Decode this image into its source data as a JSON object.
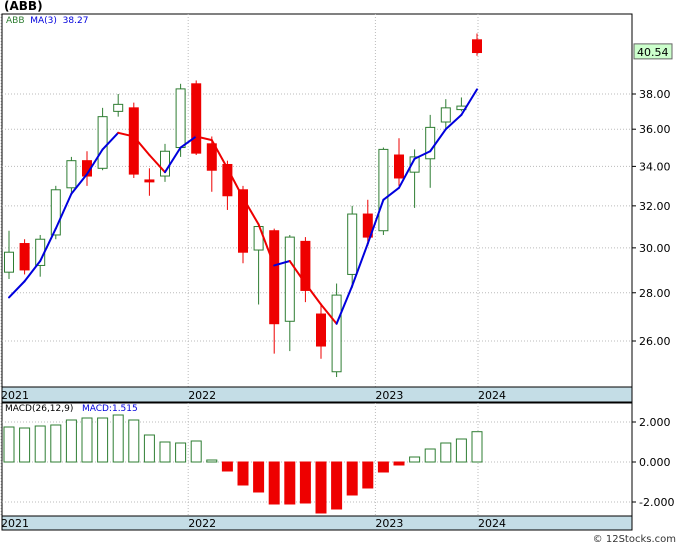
{
  "header": {
    "ticker": "(ABB)"
  },
  "legend": {
    "symbol": "ABB",
    "ma_label": "MA(3)",
    "ma_value": "38.27"
  },
  "macd_legend": {
    "label": "MACD(26,12,9)",
    "value_label": "MACD:1.515"
  },
  "last_price_label": "40.54",
  "watermark": "© 12Stocks.com",
  "colors": {
    "up": "#2e7d32",
    "down": "#ee0000",
    "ma_up": "#0000dd",
    "ma_down": "#ee0000",
    "label_box": "#ccffcc",
    "axis_band": "#c4dde6"
  },
  "chart_data": [
    {
      "type": "candlestick",
      "title": "(ABB)",
      "interval": "monthly",
      "year_labels": [
        "2021",
        "2022",
        "2023",
        "2024"
      ],
      "y_ticks": [
        "26.00",
        "28.00",
        "30.00",
        "32.00",
        "34.00",
        "36.00",
        "38.00"
      ],
      "last_price": 40.54,
      "ma_period": 3,
      "ma_last": 38.27,
      "candles": [
        {
          "date": "2021-01",
          "open": 28.9,
          "high": 30.8,
          "low": 28.6,
          "close": 29.8
        },
        {
          "date": "2021-02",
          "open": 30.2,
          "high": 30.4,
          "low": 28.8,
          "close": 29.0
        },
        {
          "date": "2021-03",
          "open": 29.2,
          "high": 30.6,
          "low": 28.7,
          "close": 30.4
        },
        {
          "date": "2021-04",
          "open": 30.6,
          "high": 33.0,
          "low": 30.4,
          "close": 32.8
        },
        {
          "date": "2021-05",
          "open": 32.9,
          "high": 34.5,
          "low": 32.6,
          "close": 34.3
        },
        {
          "date": "2021-06",
          "open": 34.3,
          "high": 34.8,
          "low": 33.0,
          "close": 33.5
        },
        {
          "date": "2021-07",
          "open": 33.9,
          "high": 37.2,
          "low": 33.8,
          "close": 36.7
        },
        {
          "date": "2021-08",
          "open": 37.0,
          "high": 38.0,
          "low": 36.7,
          "close": 37.4
        },
        {
          "date": "2021-09",
          "open": 37.2,
          "high": 37.5,
          "low": 33.4,
          "close": 33.6
        },
        {
          "date": "2021-10",
          "open": 33.3,
          "high": 33.9,
          "low": 32.5,
          "close": 33.2
        },
        {
          "date": "2021-11",
          "open": 33.5,
          "high": 35.2,
          "low": 33.2,
          "close": 34.8
        },
        {
          "date": "2021-12",
          "open": 35.0,
          "high": 38.6,
          "low": 34.5,
          "close": 38.3
        },
        {
          "date": "2022-01",
          "open": 38.6,
          "high": 38.8,
          "low": 34.6,
          "close": 34.7
        },
        {
          "date": "2022-02",
          "open": 35.2,
          "high": 35.6,
          "low": 32.7,
          "close": 33.8
        },
        {
          "date": "2022-03",
          "open": 34.1,
          "high": 34.3,
          "low": 31.8,
          "close": 32.5
        },
        {
          "date": "2022-04",
          "open": 32.8,
          "high": 33.0,
          "low": 29.3,
          "close": 29.8
        },
        {
          "date": "2022-05",
          "open": 29.9,
          "high": 31.1,
          "low": 27.5,
          "close": 31.0
        },
        {
          "date": "2022-06",
          "open": 30.8,
          "high": 30.9,
          "low": 25.5,
          "close": 26.7
        },
        {
          "date": "2022-07",
          "open": 26.8,
          "high": 30.6,
          "low": 25.6,
          "close": 30.5
        },
        {
          "date": "2022-08",
          "open": 30.3,
          "high": 30.5,
          "low": 27.6,
          "close": 28.1
        },
        {
          "date": "2022-09",
          "open": 27.1,
          "high": 27.5,
          "low": 25.3,
          "close": 25.8
        },
        {
          "date": "2022-10",
          "open": 24.8,
          "high": 28.4,
          "low": 24.6,
          "close": 27.9
        },
        {
          "date": "2022-11",
          "open": 28.8,
          "high": 32.0,
          "low": 28.2,
          "close": 31.6
        },
        {
          "date": "2022-12",
          "open": 31.6,
          "high": 32.3,
          "low": 30.1,
          "close": 30.5
        },
        {
          "date": "2023-01",
          "open": 30.8,
          "high": 35.0,
          "low": 30.6,
          "close": 34.9
        },
        {
          "date": "2023-02",
          "open": 34.6,
          "high": 35.5,
          "low": 33.0,
          "close": 33.4
        },
        {
          "date": "2023-03",
          "open": 33.7,
          "high": 34.9,
          "low": 31.9,
          "close": 34.5
        },
        {
          "date": "2023-04",
          "open": 34.4,
          "high": 36.8,
          "low": 32.9,
          "close": 36.1
        },
        {
          "date": "2023-05",
          "open": 36.4,
          "high": 37.7,
          "low": 36.0,
          "close": 37.2
        },
        {
          "date": "2023-06",
          "open": 37.1,
          "high": 37.8,
          "low": 37.0,
          "close": 37.3
        },
        {
          "date": "2023-07",
          "open": 41.3,
          "high": 41.7,
          "low": 40.3,
          "close": 40.5
        }
      ],
      "ma": [
        {
          "date": "2021-01",
          "value": 27.8
        },
        {
          "date": "2021-02",
          "value": 28.5
        },
        {
          "date": "2021-03",
          "value": 29.4
        },
        {
          "date": "2021-04",
          "value": 30.9
        },
        {
          "date": "2021-05",
          "value": 32.6
        },
        {
          "date": "2021-06",
          "value": 33.6
        },
        {
          "date": "2021-07",
          "value": 34.9
        },
        {
          "date": "2021-08",
          "value": 35.8
        },
        {
          "date": "2021-09",
          "value": 35.6
        },
        {
          "date": "2021-10",
          "value": 34.6
        },
        {
          "date": "2021-11",
          "value": 33.7
        },
        {
          "date": "2021-12",
          "value": 35.0
        },
        {
          "date": "2022-01",
          "value": 35.6
        },
        {
          "date": "2022-02",
          "value": 35.4
        },
        {
          "date": "2022-03",
          "value": 33.9
        },
        {
          "date": "2022-04",
          "value": 32.4
        },
        {
          "date": "2022-05",
          "value": 31.1
        },
        {
          "date": "2022-06",
          "value": 29.2
        },
        {
          "date": "2022-07",
          "value": 29.4
        },
        {
          "date": "2022-08",
          "value": 28.4
        },
        {
          "date": "2022-09",
          "value": 27.5
        },
        {
          "date": "2022-10",
          "value": 26.7
        },
        {
          "date": "2022-11",
          "value": 28.3
        },
        {
          "date": "2022-12",
          "value": 30.2
        },
        {
          "date": "2023-01",
          "value": 32.3
        },
        {
          "date": "2023-02",
          "value": 32.9
        },
        {
          "date": "2023-03",
          "value": 34.4
        },
        {
          "date": "2023-04",
          "value": 34.8
        },
        {
          "date": "2023-05",
          "value": 36.0
        },
        {
          "date": "2023-06",
          "value": 36.8
        },
        {
          "date": "2023-07",
          "value": 38.27
        }
      ]
    },
    {
      "type": "bar",
      "title": "MACD(26,12,9)",
      "y_ticks": [
        "2.000",
        "0.000",
        "-2.000"
      ],
      "ylim": [
        -2.6,
        2.4
      ],
      "last_value": 1.515,
      "values": [
        1.75,
        1.7,
        1.8,
        1.85,
        2.1,
        2.2,
        2.2,
        2.35,
        2.1,
        1.35,
        1.0,
        0.95,
        1.05,
        0.1,
        -0.45,
        -1.15,
        -1.5,
        -2.1,
        -2.1,
        -2.05,
        -2.55,
        -2.35,
        -1.65,
        -1.3,
        -0.5,
        -0.15,
        0.25,
        0.65,
        0.95,
        1.15,
        1.515
      ]
    }
  ]
}
